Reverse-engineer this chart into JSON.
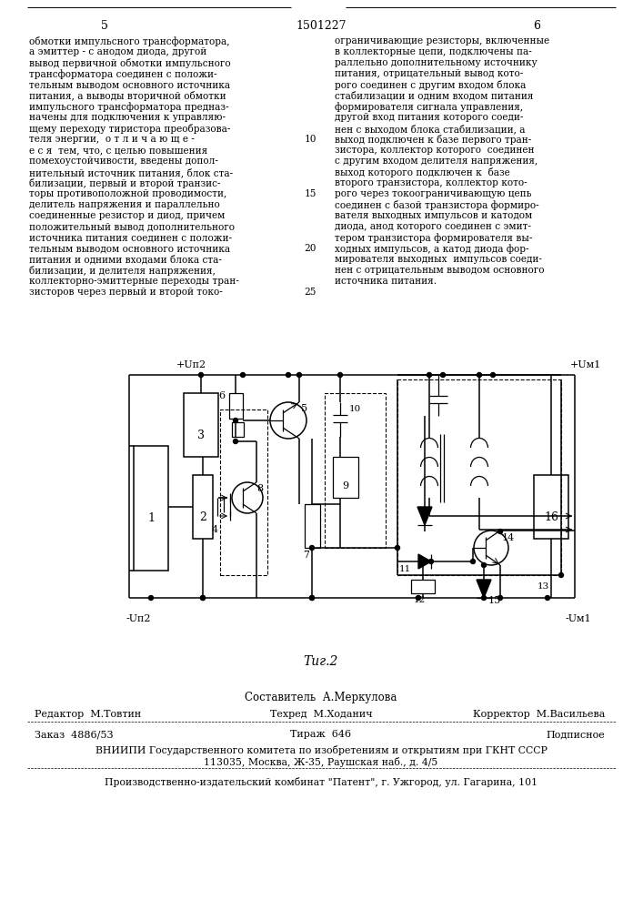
{
  "page_number_left": "5",
  "page_number_center": "1501227",
  "page_number_right": "6",
  "col1_text": [
    "обмотки импульсного трансформатора,",
    "а эмиттер - с анодом диода, другой",
    "вывод первичной обмотки импульсного",
    "трансформатора соединен с положи-",
    "тельным выводом основного источника",
    "питания, а выводы вторичной обмотки",
    "импульсного трансформатора предназ-",
    "начены для подключения к управляю-",
    "щему переходу тиристора преобразова-",
    "теля энергии,  о т л и ч а ю щ е -",
    "е с я  тем, что, с целью повышения",
    "помехоустойчивости, введены допол-",
    "нительный источник питания, блок ста-",
    "билизации, первый и второй транзис-",
    "торы противоположной проводимости,",
    "делитель напряжения и параллельно",
    "соединенные резистор и диод, причем",
    "положительный вывод дополнительного",
    "источника питания соединен с положи-",
    "тельным выводом основного источника",
    "питания и одними входами блока ста-",
    "билизации, и делителя напряжения,",
    "коллекторно-эмиттерные переходы тран-",
    "зисторов через первый и второй токо-"
  ],
  "line_num_rows": [
    [
      9,
      "10"
    ],
    [
      14,
      "15"
    ],
    [
      19,
      "20"
    ],
    [
      23,
      "25"
    ]
  ],
  "col2_text": [
    "ограничивающие резисторы, включенные",
    "в коллекторные цепи, подключены па-",
    "раллельно дополнительному источнику",
    "питания, отрицательный вывод кото-",
    "рого соединен с другим входом блока",
    "стабилизации и одним входом питания",
    "формирователя сигнала управления,",
    "другой вход питания которого соеди-",
    "нен с выходом блока стабилизации, а",
    "выход подключен к базе первого тран-",
    "зистора, коллектор которого  соединен",
    "с другим входом делителя напряжения,",
    "выход которого подключен к  базе",
    "второго транзистора, коллектор кото-",
    "рого через токоограничивающую цепь",
    "соединен с базой транзистора формиро-",
    "вателя выходных импульсов и катодом",
    "диода, анод которого соединен с эмит-",
    "тером транзистора формирователя вы-",
    "ходных импульсов, а катод диода фор-",
    "мирователя выходных  импульсов соеди-",
    "нен с отрицательным выводом основного",
    "источника питания."
  ],
  "footer_composer": "Составитель  А.Меркулова",
  "footer_editor": "Редактор  М.Товтин",
  "footer_techred": "Техред  М.Ходанич",
  "footer_corrector": "Корректор  М.Васильева",
  "footer_order": "Заказ  4886/53",
  "footer_tirazh": "Тираж  646",
  "footer_podpisnoe": "Подписное",
  "footer_vniip1": "ВНИИПИ Государственного комитета по изобретениям и открытиям при ГКНТ СССР",
  "footer_vniip2": "113035, Москва, Ж-35, Раушская наб., д. 4/5",
  "footer_kombimat": "Производственно-издательский комбинат \"Патент\", г. Ужгород, ул. Гагарина, 101",
  "bg_color": "#ffffff"
}
